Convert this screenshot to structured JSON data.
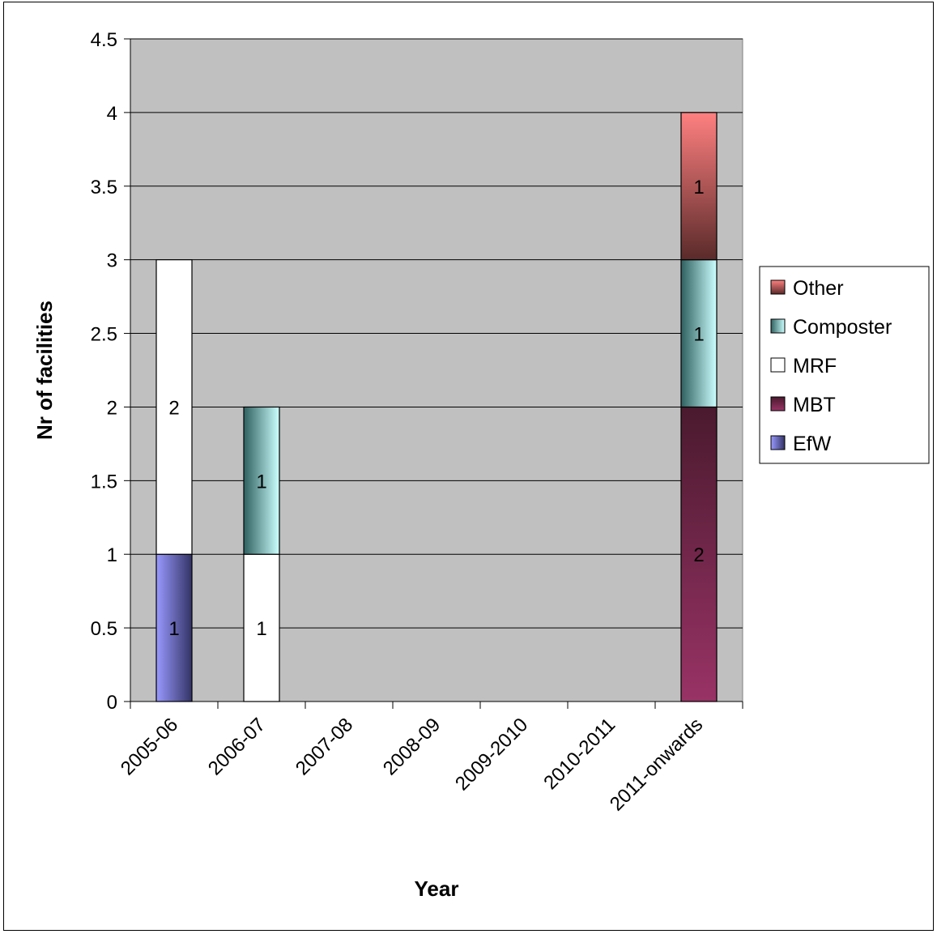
{
  "chart_data": {
    "type": "bar",
    "stacked": true,
    "title": "",
    "xlabel": "Year",
    "ylabel": "Nr of facilities",
    "ylim": [
      0,
      4.5
    ],
    "ytick_step": 0.5,
    "yticks": [
      "0",
      "0.5",
      "1",
      "1.5",
      "2",
      "2.5",
      "3",
      "3.5",
      "4",
      "4.5"
    ],
    "categories": [
      "2005-06",
      "2006-07",
      "2007-08",
      "2008-09",
      "2009-2010",
      "2010-2011",
      "2011-onwards"
    ],
    "series": [
      {
        "name": "EfW",
        "values": [
          1,
          0,
          0,
          0,
          0,
          0,
          0
        ],
        "color_top": "#9999ff",
        "color_bottom": "#333366",
        "gradient": "horizontal"
      },
      {
        "name": "MBT",
        "values": [
          0,
          0,
          0,
          0,
          0,
          0,
          2
        ],
        "color_top": "#4a1a2e",
        "color_bottom": "#993366",
        "gradient": "vertical"
      },
      {
        "name": "MRF",
        "values": [
          2,
          1,
          0,
          0,
          0,
          0,
          0
        ],
        "color_top": "#ffffff",
        "color_bottom": "#ffffff",
        "gradient": "none"
      },
      {
        "name": "Composter",
        "values": [
          0,
          1,
          0,
          0,
          0,
          0,
          1
        ],
        "color_top": "#2f6060",
        "color_bottom": "#ccffff",
        "gradient": "horizontal"
      },
      {
        "name": "Other",
        "values": [
          0,
          0,
          0,
          0,
          0,
          0,
          1
        ],
        "color_top": "#ff8080",
        "color_bottom": "#5a2a2a",
        "gradient": "vertical"
      }
    ],
    "data_labels": true,
    "legend_position": "right",
    "legend_order": [
      "Other",
      "Composter",
      "MRF",
      "MBT",
      "EfW"
    ],
    "plot_background": "#c0c0c0",
    "grid": true
  }
}
